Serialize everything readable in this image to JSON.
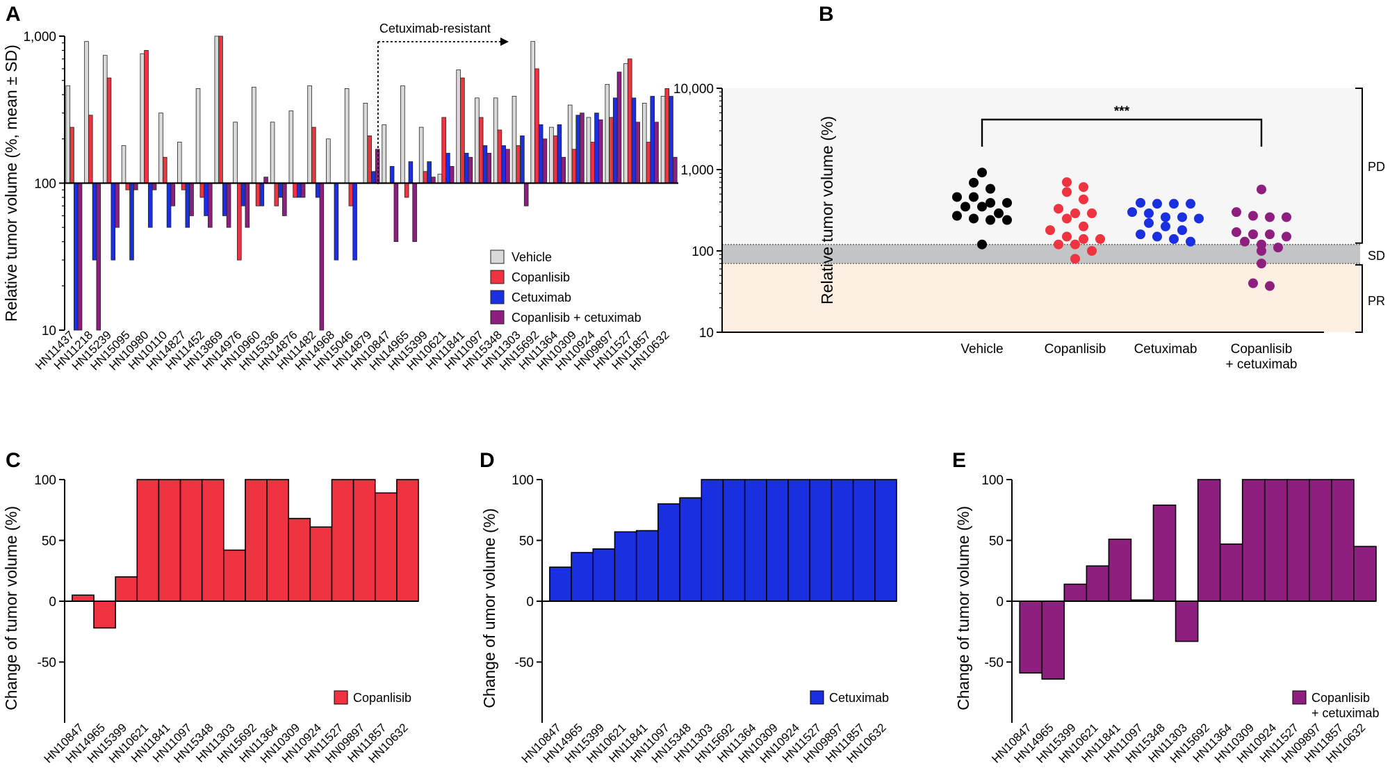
{
  "colors": {
    "vehicle": "#d9d9d9",
    "copanlisib": "#ef3340",
    "cetuximab": "#1a2fe0",
    "combo": "#8e1f7e",
    "pd_band": "#f6f6f6",
    "sd_band": "#c2c4c6",
    "pr_band": "#fdf0e2"
  },
  "chart_data": [
    {
      "panel": "A",
      "type": "bar",
      "ylabel": "Relative tumor volume (%, mean ± SD)",
      "yscale": "log",
      "ylim": [
        10,
        1000
      ],
      "yticks": [
        "10",
        "100",
        "1,000"
      ],
      "annotation": "Cetuximab-resistant",
      "categories": [
        "HN11437",
        "HN11218",
        "HN15239",
        "HN15095",
        "HN10980",
        "HN10110",
        "HN14827",
        "HN11452",
        "HN13869",
        "HN14976",
        "HN10960",
        "HN15336",
        "HN14876",
        "HN11482",
        "HN14968",
        "HN15046",
        "HN14879",
        "HN10847",
        "HN14965",
        "HN15399",
        "HN10621",
        "HN11841",
        "HN11097",
        "HN15348",
        "HN11303",
        "HN15692",
        "HN11364",
        "HN10309",
        "HN10924",
        "HN09897",
        "HN11527",
        "HN11857",
        "HN10632"
      ],
      "series": [
        {
          "name": "Vehicle",
          "values": [
            460,
            920,
            740,
            180,
            760,
            300,
            190,
            440,
            1000,
            260,
            450,
            260,
            310,
            460,
            200,
            440,
            350,
            250,
            460,
            240,
            115,
            590,
            380,
            380,
            390,
            920,
            240,
            340,
            280,
            470,
            650,
            350,
            390
          ]
        },
        {
          "name": "Copanlisib",
          "values": [
            240,
            290,
            520,
            90,
            800,
            150,
            90,
            80,
            1000,
            30,
            70,
            70,
            80,
            240,
            100,
            70,
            210,
            100,
            80,
            120,
            280,
            520,
            280,
            230,
            180,
            600,
            210,
            170,
            190,
            280,
            700,
            190,
            440
          ]
        },
        {
          "name": "Cetuximab",
          "values": [
            10,
            30,
            30,
            30,
            50,
            50,
            50,
            60,
            60,
            70,
            70,
            80,
            80,
            80,
            30,
            30,
            120,
            130,
            140,
            140,
            160,
            160,
            180,
            180,
            210,
            250,
            250,
            290,
            300,
            380,
            380,
            390,
            390
          ]
        },
        {
          "name": "Copanlisib + cetuximab",
          "values": [
            10,
            10,
            50,
            90,
            90,
            70,
            60,
            50,
            50,
            50,
            110,
            60,
            80,
            10,
            100,
            100,
            170,
            40,
            40,
            110,
            130,
            150,
            160,
            170,
            70,
            200,
            150,
            300,
            270,
            570,
            260,
            260,
            150
          ]
        }
      ]
    },
    {
      "panel": "B",
      "type": "scatter",
      "ylabel": "Relative tumor volume (%)",
      "yscale": "log",
      "ylim": [
        10,
        10000
      ],
      "yticks": [
        "10",
        "100",
        "1,000",
        "10,000"
      ],
      "categories": [
        "Vehicle",
        "Copanlisib",
        "Cetuximab",
        "Copanlisib\n+ cetuximab"
      ],
      "zones": [
        {
          "label": "PD",
          "from": 120,
          "to": 10000
        },
        {
          "label": "SD",
          "from": 70,
          "to": 120
        },
        {
          "label": "PR",
          "from": 10,
          "to": 70
        }
      ],
      "significance": "***",
      "series": [
        {
          "name": "Vehicle",
          "values": [
            920,
            690,
            580,
            460,
            460,
            390,
            390,
            350,
            350,
            290,
            270,
            250,
            240,
            240,
            120
          ]
        },
        {
          "name": "Copanlisib",
          "values": [
            700,
            610,
            530,
            430,
            330,
            290,
            290,
            250,
            200,
            180,
            150,
            140,
            140,
            120,
            120,
            100,
            80
          ]
        },
        {
          "name": "Cetuximab",
          "values": [
            390,
            380,
            380,
            380,
            300,
            290,
            260,
            260,
            250,
            220,
            200,
            180,
            160,
            150,
            140,
            130
          ]
        },
        {
          "name": "Copanlisib + cetuximab",
          "values": [
            570,
            300,
            270,
            260,
            260,
            170,
            160,
            160,
            150,
            130,
            120,
            110,
            100,
            70,
            40,
            37
          ]
        }
      ]
    },
    {
      "panel": "C",
      "type": "bar",
      "ylabel": "Change of tumor volume (%)",
      "ylim": [
        -100,
        100
      ],
      "yticks": [
        "-50",
        "0",
        "50",
        "100"
      ],
      "legend": "Copanlisib",
      "categories": [
        "HN10847",
        "HN14965",
        "HN15399",
        "HN10621",
        "HN11841",
        "HN11097",
        "HN15348",
        "HN11303",
        "HN15692",
        "HN11364",
        "HN10309",
        "HN10924",
        "HN11527",
        "HN09897",
        "HN11857",
        "HN10632"
      ],
      "values": [
        5,
        -22,
        20,
        100,
        100,
        100,
        100,
        42,
        100,
        100,
        68,
        61,
        100,
        100,
        89,
        100
      ]
    },
    {
      "panel": "D",
      "type": "bar",
      "ylabel": "Change of umor volume (%)",
      "ylim": [
        -100,
        100
      ],
      "yticks": [
        "-50",
        "0",
        "50",
        "100"
      ],
      "legend": "Cetuximab",
      "categories": [
        "HN10847",
        "HN14965",
        "HN15399",
        "HN10621",
        "HN11841",
        "HN11097",
        "HN15348",
        "HN11303",
        "HN15692",
        "HN11364",
        "HN10309",
        "HN10924",
        "HN11527",
        "HN09897",
        "HN11857",
        "HN10632"
      ],
      "values": [
        28,
        40,
        43,
        57,
        58,
        80,
        85,
        100,
        100,
        100,
        100,
        100,
        100,
        100,
        100,
        100
      ]
    },
    {
      "panel": "E",
      "type": "bar",
      "ylabel": "Change of tumor volume  (%)",
      "ylim": [
        -100,
        100
      ],
      "yticks": [
        "-50",
        "0",
        "50",
        "100"
      ],
      "legend": "Copanlisib\n+ cetuximab",
      "categories": [
        "HN10847",
        "HN14965",
        "HN15399",
        "HN10621",
        "HN11841",
        "HN11097",
        "HN15348",
        "HN11303",
        "HN15692",
        "HN11364",
        "HN10309",
        "HN10924",
        "HN11527",
        "HN09897",
        "HN11857",
        "HN10632"
      ],
      "values": [
        -59,
        -64,
        14,
        29,
        51,
        1,
        79,
        -33,
        100,
        47,
        100,
        100,
        100,
        100,
        100,
        45
      ]
    }
  ]
}
